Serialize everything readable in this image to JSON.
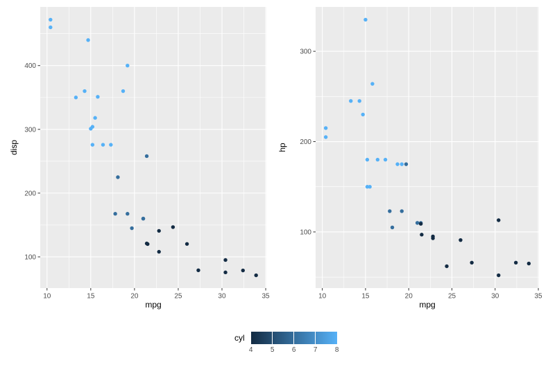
{
  "figure": {
    "background": "#FFFFFF",
    "panel_background": "#EBEBEB",
    "grid_color": "#FFFFFF",
    "tick_label_color": "#4D4D4D",
    "tick_mark_color": "#333333",
    "axis_title_color": "#000000"
  },
  "legend": {
    "title": "cyl",
    "ticks": [
      4,
      5,
      6,
      7,
      8
    ],
    "domain": [
      4,
      8
    ],
    "gradient_low": "#132B43",
    "gradient_high": "#56B1F7"
  },
  "chart_data": [
    {
      "type": "scatter",
      "title": "",
      "xlabel": "mpg",
      "ylabel": "disp",
      "xlim": [
        9.225,
        35.075
      ],
      "ylim": [
        51.1,
        492.0
      ],
      "xticks": [
        10,
        15,
        20,
        25,
        30,
        35
      ],
      "yticks": [
        100,
        200,
        300,
        400
      ],
      "color_label": "cyl",
      "color_domain": [
        4,
        8
      ],
      "x": [
        21,
        21,
        22.8,
        21.4,
        18.7,
        18.1,
        14.3,
        24.4,
        22.8,
        19.2,
        17.8,
        16.4,
        17.3,
        15.2,
        10.4,
        10.4,
        14.7,
        32.4,
        30.4,
        33.9,
        21.5,
        15.5,
        15.2,
        13.3,
        19.2,
        27.3,
        26,
        30.4,
        15.8,
        19.7,
        15,
        21.4
      ],
      "y": [
        160,
        160,
        108,
        258,
        360,
        225,
        360,
        146.7,
        140.8,
        167.6,
        167.6,
        275.8,
        275.8,
        275.8,
        472,
        460,
        440,
        78.7,
        75.7,
        71.1,
        120.1,
        318,
        304,
        350,
        400,
        79,
        120.3,
        95.1,
        351,
        145,
        301,
        121
      ],
      "color": [
        6,
        6,
        4,
        6,
        8,
        6,
        8,
        4,
        4,
        6,
        6,
        8,
        8,
        8,
        8,
        8,
        8,
        4,
        4,
        4,
        4,
        8,
        8,
        8,
        8,
        4,
        4,
        4,
        8,
        6,
        8,
        4
      ]
    },
    {
      "type": "scatter",
      "title": "",
      "xlabel": "mpg",
      "ylabel": "hp",
      "xlim": [
        9.225,
        35.075
      ],
      "ylim": [
        37.85,
        349.15
      ],
      "xticks": [
        10,
        15,
        20,
        25,
        30,
        35
      ],
      "yticks": [
        100,
        200,
        300
      ],
      "color_label": "cyl",
      "color_domain": [
        4,
        8
      ],
      "x": [
        21,
        21,
        22.8,
        21.4,
        18.7,
        18.1,
        14.3,
        24.4,
        22.8,
        19.2,
        17.8,
        16.4,
        17.3,
        15.2,
        10.4,
        10.4,
        14.7,
        32.4,
        30.4,
        33.9,
        21.5,
        15.5,
        15.2,
        13.3,
        19.2,
        27.3,
        26,
        30.4,
        15.8,
        19.7,
        15,
        21.4
      ],
      "y": [
        110,
        110,
        93,
        110,
        175,
        105,
        245,
        62,
        95,
        123,
        123,
        180,
        180,
        180,
        205,
        215,
        230,
        66,
        52,
        65,
        97,
        150,
        150,
        245,
        175,
        66,
        91,
        113,
        264,
        175,
        335,
        109
      ],
      "color": [
        6,
        6,
        4,
        6,
        8,
        6,
        8,
        4,
        4,
        6,
        6,
        8,
        8,
        8,
        8,
        8,
        8,
        4,
        4,
        4,
        4,
        8,
        8,
        8,
        8,
        4,
        4,
        4,
        8,
        6,
        8,
        4
      ]
    }
  ]
}
